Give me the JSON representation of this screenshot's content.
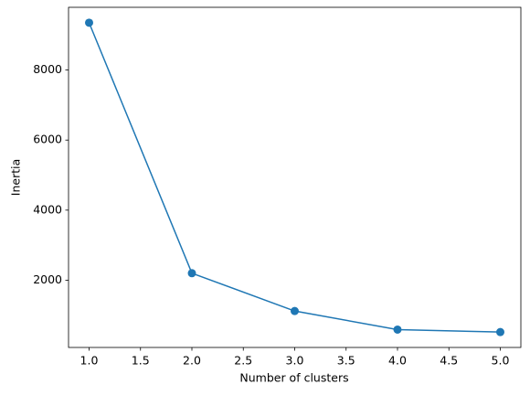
{
  "chart_data": {
    "type": "line",
    "x_label": "Number of clusters",
    "y_label": "Inertia",
    "x": [
      1,
      2,
      3,
      4,
      5
    ],
    "values": [
      9350,
      2200,
      1120,
      590,
      520
    ],
    "color": "#1f77b4",
    "marker": "circle",
    "xlim": [
      0.8,
      5.2
    ],
    "xticks": [
      {
        "value": 1,
        "label": "1.0"
      },
      1.5,
      {
        "value": 2,
        "label": "2.0"
      },
      2.5,
      {
        "value": 3,
        "label": "3.0"
      },
      3.5,
      {
        "value": 4,
        "label": "4.0"
      },
      4.5,
      {
        "value": 5,
        "label": "5.0"
      }
    ],
    "ylim": [
      80,
      9790
    ],
    "yticks": [
      2000,
      4000,
      6000,
      8000
    ],
    "grid": false
  }
}
